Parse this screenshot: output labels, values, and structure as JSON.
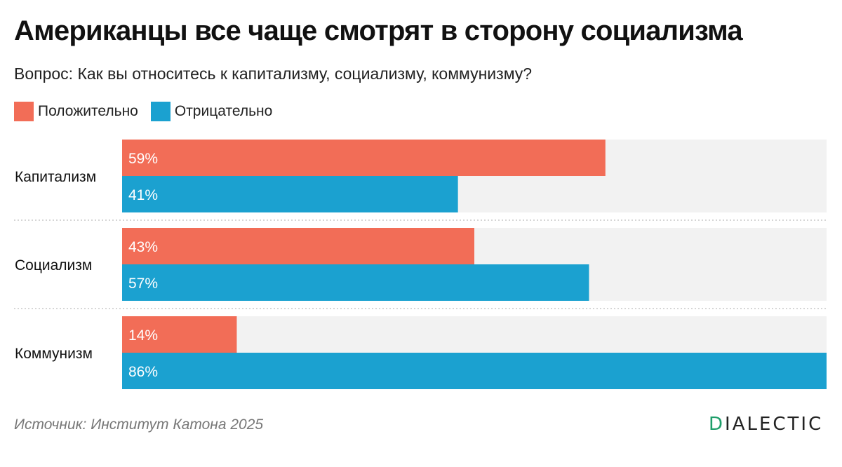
{
  "title": "Американцы все чаще смотрят в сторону социализма",
  "subtitle": "Вопрос: Как вы относитесь к капитализму, социализму, коммунизму?",
  "source": "Источник: Институт Катона 2025",
  "logo": {
    "first": "D",
    "rest": "IALECTIC"
  },
  "colors": {
    "positive": "#f26d57",
    "negative": "#1ba1d0",
    "track": "#f2f2f2",
    "accent": "#1e9e6a"
  },
  "chart_data": {
    "type": "bar",
    "orientation": "horizontal",
    "title": "Американцы все чаще смотрят в сторону социализма",
    "subtitle": "Вопрос: Как вы относитесь к капитализму, социализму, коммунизму?",
    "categories": [
      "Капитализм",
      "Социализм",
      "Коммунизм"
    ],
    "series": [
      {
        "name": "Положительно",
        "values": [
          59,
          43,
          14
        ],
        "labels": [
          "59%",
          "43%",
          "14%"
        ],
        "color": "#f26d57"
      },
      {
        "name": "Отрицательно",
        "values": [
          41,
          57,
          86
        ],
        "labels": [
          "41%",
          "57%",
          "86%"
        ],
        "color": "#1ba1d0"
      }
    ],
    "xlim": [
      0,
      86
    ],
    "legend": "top-left",
    "grid": false
  }
}
